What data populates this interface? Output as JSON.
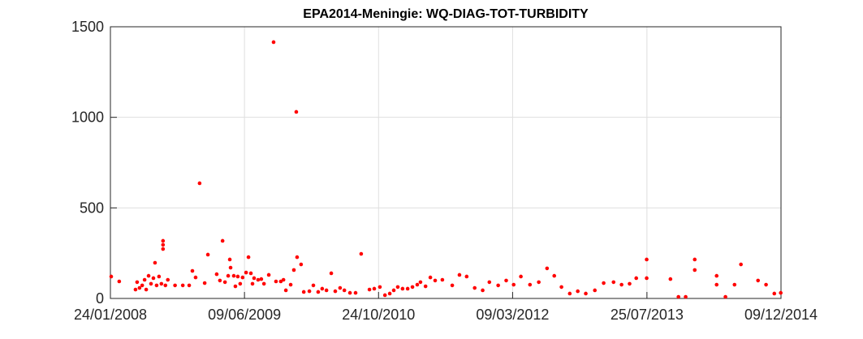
{
  "chart_data": {
    "type": "scatter",
    "title": "EPA2014-Meningie: WQ-DIAG-TOT-TURBIDITY",
    "color": "#ff0000",
    "grid": true,
    "xlim": [
      "2008-01-24",
      "2014-12-09"
    ],
    "xticks": [
      {
        "value": "2008-01-24",
        "label": "24/01/2008"
      },
      {
        "value": "2009-06-09",
        "label": "09/06/2009"
      },
      {
        "value": "2010-10-24",
        "label": "24/10/2010"
      },
      {
        "value": "2012-03-09",
        "label": "09/03/2012"
      },
      {
        "value": "2013-07-25",
        "label": "25/07/2013"
      },
      {
        "value": "2014-12-09",
        "label": "09/12/2014"
      }
    ],
    "ylim": [
      0,
      1500
    ],
    "yticks": [
      0,
      500,
      1000,
      1500
    ],
    "x": [
      "2008-01-27",
      "2008-02-26",
      "2008-04-27",
      "2008-05-03",
      "2008-05-12",
      "2008-05-22",
      "2008-05-31",
      "2008-06-06",
      "2008-06-15",
      "2008-06-24",
      "2008-07-03",
      "2008-07-09",
      "2008-07-15",
      "2008-07-24",
      "2008-08-02",
      "2008-08-08",
      "2008-08-08",
      "2008-08-08",
      "2008-08-17",
      "2008-08-26",
      "2008-09-22",
      "2008-10-21",
      "2008-11-14",
      "2008-11-26",
      "2008-12-08",
      "2008-12-23",
      "2009-01-11",
      "2009-01-23",
      "2009-02-25",
      "2009-03-09",
      "2009-03-19",
      "2009-03-28",
      "2009-04-09",
      "2009-04-15",
      "2009-04-18",
      "2009-04-30",
      "2009-05-06",
      "2009-05-15",
      "2009-05-24",
      "2009-06-02",
      "2009-06-15",
      "2009-06-24",
      "2009-07-03",
      "2009-07-09",
      "2009-07-15",
      "2009-07-30",
      "2009-08-11",
      "2009-08-21",
      "2009-09-08",
      "2009-09-26",
      "2009-10-05",
      "2009-10-23",
      "2009-11-02",
      "2009-11-11",
      "2009-11-29",
      "2009-12-11",
      "2009-12-20",
      "2009-12-23",
      "2010-01-07",
      "2010-01-17",
      "2010-02-07",
      "2010-02-22",
      "2010-03-12",
      "2010-03-27",
      "2010-04-12",
      "2010-04-30",
      "2010-05-15",
      "2010-06-02",
      "2010-06-18",
      "2010-07-09",
      "2010-07-30",
      "2010-08-20",
      "2010-09-20",
      "2010-10-08",
      "2010-10-29",
      "2010-11-17",
      "2010-12-05",
      "2010-12-20",
      "2011-01-04",
      "2011-01-22",
      "2011-02-10",
      "2011-02-28",
      "2011-03-18",
      "2011-03-30",
      "2011-04-18",
      "2011-05-06",
      "2011-05-24",
      "2011-06-20",
      "2011-07-27",
      "2011-08-23",
      "2011-09-19",
      "2011-10-19",
      "2011-11-18",
      "2011-12-13",
      "2012-01-15",
      "2012-02-14",
      "2012-03-13",
      "2012-04-09",
      "2012-05-13",
      "2012-06-15",
      "2012-07-16",
      "2012-08-12",
      "2012-09-08",
      "2012-10-09",
      "2012-11-08",
      "2012-12-08",
      "2013-01-11",
      "2013-02-13",
      "2013-03-22",
      "2013-04-21",
      "2013-05-21",
      "2013-06-15",
      "2013-07-24",
      "2013-07-24",
      "2013-10-21",
      "2013-11-20",
      "2013-12-17",
      "2014-01-20",
      "2014-01-20",
      "2014-04-12",
      "2014-04-12",
      "2014-05-15",
      "2014-06-18",
      "2014-07-12",
      "2014-09-14",
      "2014-10-14",
      "2014-11-14",
      "2014-12-08"
    ],
    "values": [
      121,
      94,
      49,
      90,
      58,
      72,
      103,
      49,
      125,
      81,
      112,
      197,
      72,
      121,
      81,
      318,
      296,
      273,
      72,
      103,
      72,
      72,
      72,
      152,
      116,
      636,
      85,
      242,
      134,
      99,
      318,
      90,
      125,
      215,
      170,
      125,
      67,
      121,
      81,
      116,
      143,
      228,
      139,
      81,
      112,
      103,
      107,
      81,
      130,
      1415,
      94,
      94,
      103,
      45,
      76,
      157,
      1030,
      228,
      188,
      36,
      40,
      72,
      36,
      54,
      45,
      139,
      40,
      58,
      45,
      31,
      31,
      246,
      49,
      54,
      63,
      18,
      27,
      45,
      63,
      54,
      54,
      63,
      76,
      90,
      67,
      116,
      99,
      103,
      72,
      130,
      121,
      58,
      45,
      90,
      72,
      99,
      76,
      121,
      76,
      90,
      166,
      125,
      63,
      27,
      40,
      27,
      45,
      85,
      90,
      76,
      81,
      112,
      215,
      112,
      107,
      9,
      9,
      215,
      157,
      125,
      76,
      9,
      76,
      188,
      99,
      76,
      27,
      31
    ]
  }
}
